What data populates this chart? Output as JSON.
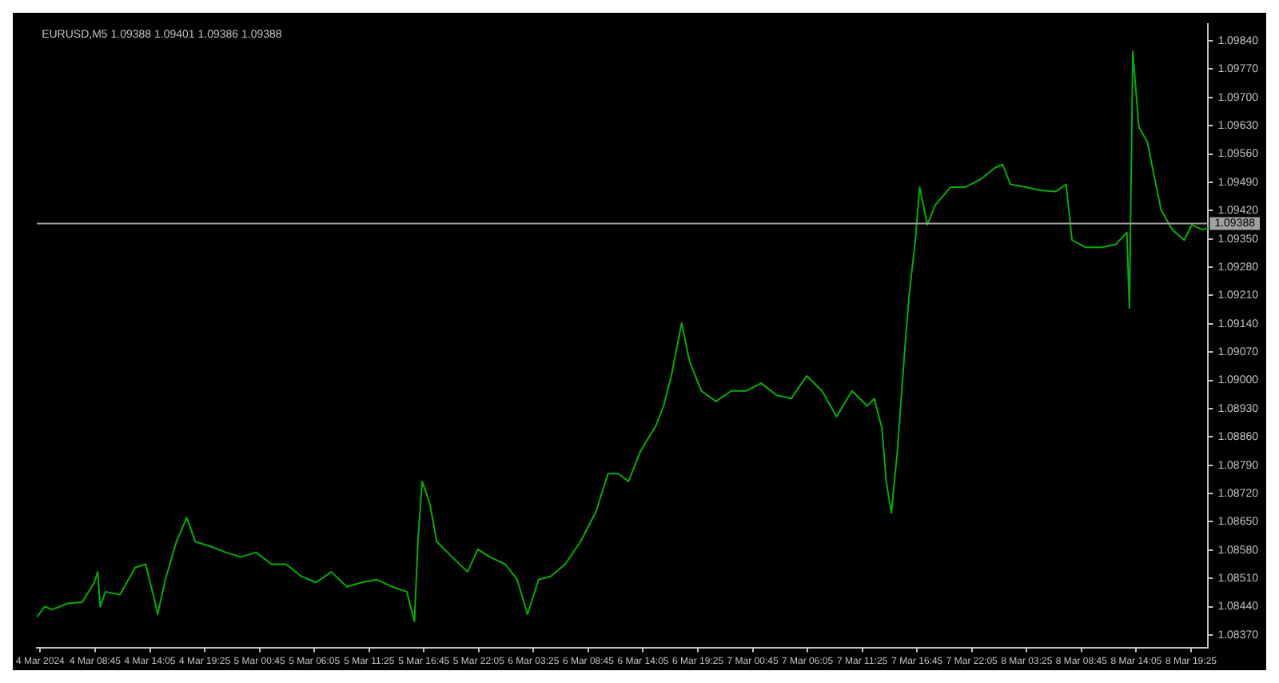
{
  "chart_data": {
    "type": "line",
    "title": "EURUSD,M5 1.09388 1.09401 1.09386 1.09388",
    "xlim": [
      "2024-03-04T03:05",
      "2024-03-08T21:05"
    ],
    "xticks": [
      {
        "value": "2024-03-04T03:25",
        "label": "4 Mar 2024"
      },
      {
        "value": "2024-03-04T08:45",
        "label": "4 Mar 08:45"
      },
      {
        "value": "2024-03-04T14:05",
        "label": "4 Mar 14:05"
      },
      {
        "value": "2024-03-04T19:25",
        "label": "4 Mar 19:25"
      },
      {
        "value": "2024-03-05T00:45",
        "label": "5 Mar 00:45"
      },
      {
        "value": "2024-03-05T06:05",
        "label": "5 Mar 06:05"
      },
      {
        "value": "2024-03-05T11:25",
        "label": "5 Mar 11:25"
      },
      {
        "value": "2024-03-05T16:45",
        "label": "5 Mar 16:45"
      },
      {
        "value": "2024-03-05T22:05",
        "label": "5 Mar 22:05"
      },
      {
        "value": "2024-03-06T03:25",
        "label": "6 Mar 03:25"
      },
      {
        "value": "2024-03-06T08:45",
        "label": "6 Mar 08:45"
      },
      {
        "value": "2024-03-06T14:05",
        "label": "6 Mar 14:05"
      },
      {
        "value": "2024-03-06T19:25",
        "label": "6 Mar 19:25"
      },
      {
        "value": "2024-03-07T00:45",
        "label": "7 Mar 00:45"
      },
      {
        "value": "2024-03-07T06:05",
        "label": "7 Mar 06:05"
      },
      {
        "value": "2024-03-07T11:25",
        "label": "7 Mar 11:25"
      },
      {
        "value": "2024-03-07T16:45",
        "label": "7 Mar 16:45"
      },
      {
        "value": "2024-03-07T22:05",
        "label": "7 Mar 22:05"
      },
      {
        "value": "2024-03-08T03:25",
        "label": "8 Mar 03:25"
      },
      {
        "value": "2024-03-08T08:45",
        "label": "8 Mar 08:45"
      },
      {
        "value": "2024-03-08T14:05",
        "label": "8 Mar 14:05"
      },
      {
        "value": "2024-03-08T19:25",
        "label": "8 Mar 19:25"
      }
    ],
    "ylim": [
      1.08339,
      1.09881
    ],
    "yticks": [
      {
        "value": 1.0837,
        "label": "1.08370"
      },
      {
        "value": 1.0844,
        "label": "1.08440"
      },
      {
        "value": 1.0851,
        "label": "1.08510"
      },
      {
        "value": 1.0858,
        "label": "1.08580"
      },
      {
        "value": 1.0865,
        "label": "1.08650"
      },
      {
        "value": 1.0872,
        "label": "1.08720"
      },
      {
        "value": 1.0879,
        "label": "1.08790"
      },
      {
        "value": 1.0886,
        "label": "1.08860"
      },
      {
        "value": 1.0893,
        "label": "1.08930"
      },
      {
        "value": 1.09,
        "label": "1.09000"
      },
      {
        "value": 1.0907,
        "label": "1.09070"
      },
      {
        "value": 1.0914,
        "label": "1.09140"
      },
      {
        "value": 1.0921,
        "label": "1.09210"
      },
      {
        "value": 1.0928,
        "label": "1.09280"
      },
      {
        "value": 1.0935,
        "label": "1.09350"
      },
      {
        "value": 1.0942,
        "label": "1.09420"
      },
      {
        "value": 1.0949,
        "label": "1.09490"
      },
      {
        "value": 1.0956,
        "label": "1.09560"
      },
      {
        "value": 1.0963,
        "label": "1.09630"
      },
      {
        "value": 1.097,
        "label": "1.09700"
      },
      {
        "value": 1.0977,
        "label": "1.09770"
      },
      {
        "value": 1.0984,
        "label": "1.09840"
      }
    ],
    "ref_lines": [
      {
        "axis": "y",
        "value": 1.09388,
        "label": "1.09388",
        "color": "#a0a0a0"
      }
    ],
    "x": [
      "2024-03-04T03:05",
      "2024-03-04T03:50",
      "2024-03-04T04:35",
      "2024-03-04T06:05",
      "2024-03-04T07:30",
      "2024-03-04T08:40",
      "2024-03-04T09:00",
      "2024-03-04T09:15",
      "2024-03-04T09:45",
      "2024-03-04T11:10",
      "2024-03-04T12:40",
      "2024-03-04T13:40",
      "2024-03-04T14:35",
      "2024-03-04T14:50",
      "2024-03-04T15:35",
      "2024-03-04T16:40",
      "2024-03-04T17:40",
      "2024-03-04T18:30",
      "2024-03-04T20:00",
      "2024-03-04T21:30",
      "2024-03-04T22:55",
      "2024-03-05T00:25",
      "2024-03-05T01:55",
      "2024-03-05T03:20",
      "2024-03-05T04:50",
      "2024-03-05T06:15",
      "2024-03-05T07:45",
      "2024-03-05T09:15",
      "2024-03-05T10:40",
      "2024-03-05T12:10",
      "2024-03-05T13:40",
      "2024-03-05T15:05",
      "2024-03-05T15:50",
      "2024-03-05T16:10",
      "2024-03-05T16:35",
      "2024-03-05T17:20",
      "2024-03-05T18:00",
      "2024-03-05T19:30",
      "2024-03-05T21:00",
      "2024-03-05T22:00",
      "2024-03-05T23:10",
      "2024-03-06T00:40",
      "2024-03-06T01:50",
      "2024-03-06T02:50",
      "2024-03-06T03:55",
      "2024-03-06T05:05",
      "2024-03-06T06:30",
      "2024-03-06T08:00",
      "2024-03-06T09:30",
      "2024-03-06T10:40",
      "2024-03-06T11:40",
      "2024-03-06T12:40",
      "2024-03-06T13:50",
      "2024-03-06T15:20",
      "2024-03-06T16:05",
      "2024-03-06T16:50",
      "2024-03-06T17:50",
      "2024-03-06T18:35",
      "2024-03-06T19:45",
      "2024-03-06T21:10",
      "2024-03-06T22:40",
      "2024-03-07T00:10",
      "2024-03-07T01:35",
      "2024-03-07T03:05",
      "2024-03-07T04:30",
      "2024-03-07T06:00",
      "2024-03-07T07:30",
      "2024-03-07T08:55",
      "2024-03-07T10:25",
      "2024-03-07T11:55",
      "2024-03-07T12:35",
      "2024-03-07T13:20",
      "2024-03-07T13:45",
      "2024-03-07T14:15",
      "2024-03-07T14:50",
      "2024-03-07T15:35",
      "2024-03-07T16:00",
      "2024-03-07T16:35",
      "2024-03-07T17:00",
      "2024-03-07T17:45",
      "2024-03-07T18:30",
      "2024-03-07T20:00",
      "2024-03-07T21:25",
      "2024-03-07T22:55",
      "2024-03-08T00:20",
      "2024-03-08T01:05",
      "2024-03-08T01:50",
      "2024-03-08T03:20",
      "2024-03-08T04:45",
      "2024-03-08T06:15",
      "2024-03-08T07:15",
      "2024-03-08T07:50",
      "2024-03-08T09:10",
      "2024-03-08T10:40",
      "2024-03-08T12:05",
      "2024-03-08T13:10",
      "2024-03-08T13:25",
      "2024-03-08T13:45",
      "2024-03-08T14:20",
      "2024-03-08T15:10",
      "2024-03-08T15:45",
      "2024-03-08T16:30",
      "2024-03-08T17:35",
      "2024-03-08T18:45",
      "2024-03-08T19:30",
      "2024-03-08T20:30",
      "2024-03-08T21:05"
    ],
    "series": [
      {
        "color": "#00b000",
        "values": [
          1.08414,
          1.0844,
          1.08433,
          1.08448,
          1.08451,
          1.085,
          1.08526,
          1.0844,
          1.08477,
          1.0847,
          1.08537,
          1.08545,
          1.08451,
          1.08421,
          1.08507,
          1.08601,
          1.0866,
          1.08601,
          1.08589,
          1.08574,
          1.08563,
          1.08574,
          1.08545,
          1.08545,
          1.08515,
          1.085,
          1.08526,
          1.08489,
          1.085,
          1.08507,
          1.08489,
          1.08477,
          1.08403,
          1.08601,
          1.0875,
          1.08694,
          1.08601,
          1.08563,
          1.08526,
          1.08582,
          1.08563,
          1.08545,
          1.08507,
          1.08421,
          1.08507,
          1.08515,
          1.08545,
          1.08601,
          1.08675,
          1.08769,
          1.08769,
          1.0875,
          1.08825,
          1.08888,
          1.08937,
          1.09011,
          1.09142,
          1.09049,
          1.08974,
          1.08948,
          1.08974,
          1.08974,
          1.08993,
          1.08963,
          1.08955,
          1.09011,
          1.08974,
          1.0891,
          1.08974,
          1.08937,
          1.08955,
          1.08881,
          1.0875,
          1.08672,
          1.08825,
          1.09086,
          1.09217,
          1.09347,
          1.09478,
          1.09385,
          1.09433,
          1.09478,
          1.09478,
          1.09497,
          1.09526,
          1.09534,
          1.09485,
          1.09478,
          1.0947,
          1.09467,
          1.09485,
          1.09347,
          1.09329,
          1.09329,
          1.09336,
          1.09366,
          1.09179,
          1.09814,
          1.09627,
          1.0959,
          1.09515,
          1.09422,
          1.09373,
          1.09347,
          1.09385,
          1.09373,
          1.09377
        ]
      }
    ]
  }
}
